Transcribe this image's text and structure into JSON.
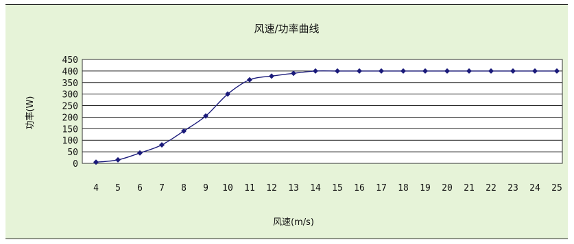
{
  "chart_data": {
    "type": "line",
    "title": "风速/功率曲线",
    "xlabel": "风速(m/s)",
    "ylabel": "功率(W)",
    "x": [
      4,
      5,
      6,
      7,
      8,
      9,
      10,
      11,
      12,
      13,
      14,
      15,
      16,
      17,
      18,
      19,
      20,
      21,
      22,
      23,
      24,
      25
    ],
    "xticks": [
      "4",
      "5",
      "6",
      "7",
      "8",
      "9",
      "10",
      "11",
      "12",
      "13",
      "14",
      "15",
      "16",
      "17",
      "18",
      "19",
      "20",
      "21",
      "22",
      "23",
      "24",
      "25"
    ],
    "yticks": [
      "0",
      "50",
      "100",
      "150",
      "200",
      "250",
      "300",
      "350",
      "400",
      "450"
    ],
    "ylim": [
      0,
      450
    ],
    "series": [
      {
        "values": [
          5,
          15,
          45,
          80,
          140,
          205,
          300,
          362,
          378,
          390,
          400,
          400,
          400,
          400,
          400,
          400,
          400,
          400,
          400,
          400,
          400,
          400
        ],
        "color": "#1a1a7a"
      }
    ],
    "grid": "horizontal",
    "background": "#e6f3d8",
    "plot_background": "#ffffff"
  }
}
